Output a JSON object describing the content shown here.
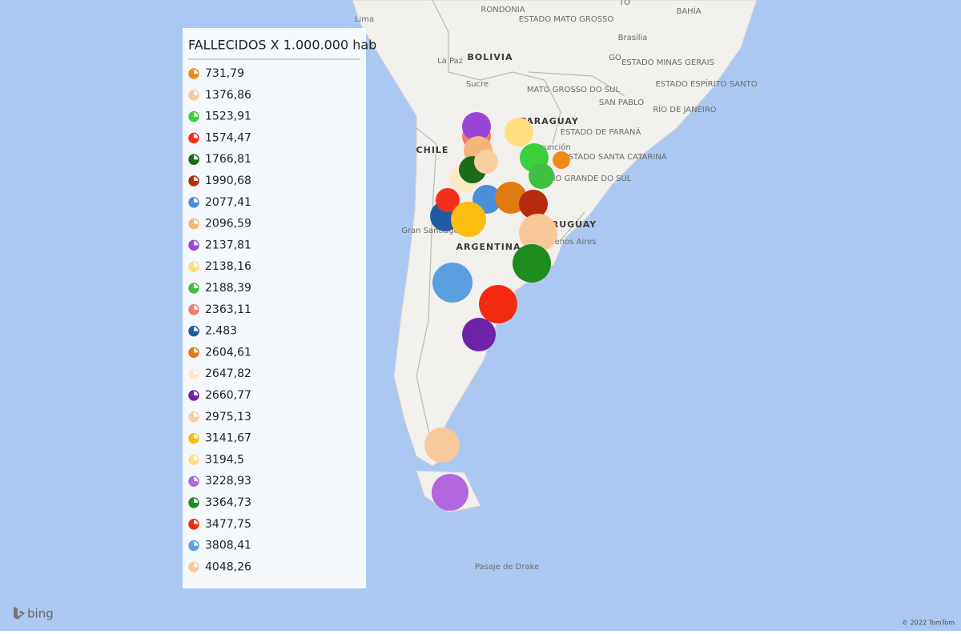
{
  "legend": {
    "title": "FALLECIDOS X 1.000.000 hab",
    "items": [
      {
        "label": "731,79",
        "color": "#f0891b"
      },
      {
        "label": "1376,86",
        "color": "#f8c99b"
      },
      {
        "label": "1523,91",
        "color": "#3ccf3c"
      },
      {
        "label": "1574,47",
        "color": "#f2301a"
      },
      {
        "label": "1766,81",
        "color": "#1a6a1a"
      },
      {
        "label": "1990,68",
        "color": "#b82a0c"
      },
      {
        "label": "2077,41",
        "color": "#4a8fda"
      },
      {
        "label": "2096,59",
        "color": "#f5b57a"
      },
      {
        "label": "2137,81",
        "color": "#9b45d6"
      },
      {
        "label": "2138,16",
        "color": "#fddf80"
      },
      {
        "label": "2188,39",
        "color": "#3fbf3f"
      },
      {
        "label": "2363,11",
        "color": "#f47a6d"
      },
      {
        "label": "2.483",
        "color": "#1f5ba0"
      },
      {
        "label": "2604,61",
        "color": "#e07b12"
      },
      {
        "label": "2647,82",
        "color": "#fde9c4"
      },
      {
        "label": "2660,77",
        "color": "#6e23a8"
      },
      {
        "label": "2975,13",
        "color": "#f9cfa0"
      },
      {
        "label": "3141,67",
        "color": "#fbbd0e"
      },
      {
        "label": "3194,5",
        "color": "#fddf88"
      },
      {
        "label": "3228,93",
        "color": "#b366e0"
      },
      {
        "label": "3364,73",
        "color": "#1e8c1e"
      },
      {
        "label": "3477,75",
        "color": "#f32a10"
      },
      {
        "label": "3808,41",
        "color": "#5aa0e0"
      },
      {
        "label": "4048,26",
        "color": "#f8c89a"
      }
    ]
  },
  "map_labels": [
    "Lima",
    "RONDONIA",
    "ESTADO MATO GROSSO",
    "TO",
    "BAHÍA",
    "Brasilia",
    "La Paz",
    "BOLIVIA",
    "Sucre",
    "GO",
    "ESTADO MINAS GERAIS",
    "MATO GROSSO DO SUL",
    "ESTADO ESPÍRITO SANTO",
    "SAN PABLO",
    "RÍO DE JANEIRO",
    "PARAGUAY",
    "ESTADO DE PARANÁ",
    "CHILE",
    "Asunción",
    "ESTADO SANTA CATARINA",
    "RÍO GRANDE DO SUL",
    "Gran Santiago",
    "URUGUAY",
    "Buenos Aires",
    "ARGENTINA",
    "Pasaje de Drake"
  ],
  "footer": {
    "brand": "bing",
    "copyright": "© 2022 TomTom"
  }
}
